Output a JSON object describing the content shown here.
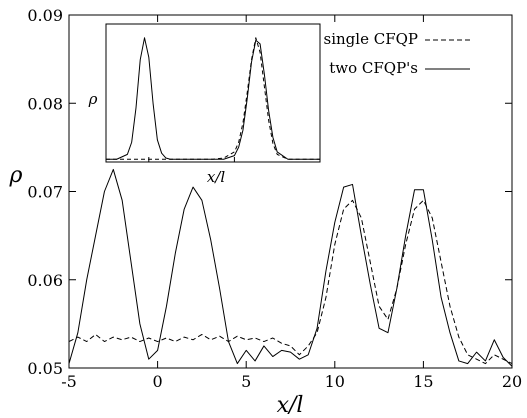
{
  "chart_data": {
    "type": "line",
    "title": "",
    "xlabel": "x/l",
    "ylabel": "ρ",
    "xlim": [
      -5,
      20
    ],
    "ylim": [
      0.05,
      0.09
    ],
    "x_ticks": [
      -5,
      0,
      5,
      10,
      15,
      20
    ],
    "y_ticks": [
      0.05,
      0.06,
      0.07,
      0.08,
      0.09
    ],
    "x_tick_labels": [
      "-5",
      "0",
      "5",
      "10",
      "15",
      "20"
    ],
    "y_tick_labels": [
      "0.05",
      "0.06",
      "0.07",
      "0.08",
      "0.09"
    ],
    "grid": false,
    "legend": {
      "placement": "top-right",
      "entries": [
        {
          "name": "single CFQP",
          "style": "dashed"
        },
        {
          "name": "two CFQP's",
          "style": "solid"
        }
      ]
    },
    "series": [
      {
        "name": "single CFQP",
        "style": "dashed",
        "color": "#000000",
        "x": [
          -5,
          -4.5,
          -4,
          -3.5,
          -3,
          -2.5,
          -2,
          -1.5,
          -1,
          -0.5,
          0,
          0.5,
          1,
          1.5,
          2,
          2.5,
          3,
          3.5,
          4,
          4.5,
          5,
          5.5,
          6,
          6.5,
          7,
          7.5,
          8,
          8.5,
          9,
          9.5,
          10,
          10.5,
          11,
          11.5,
          12,
          12.5,
          13,
          13.5,
          14,
          14.5,
          15,
          15.5,
          16,
          16.5,
          17,
          17.5,
          18,
          18.5,
          19,
          19.5,
          20
        ],
        "y": [
          0.053,
          0.0535,
          0.053,
          0.0538,
          0.053,
          0.0535,
          0.0532,
          0.0535,
          0.053,
          0.0534,
          0.053,
          0.0534,
          0.053,
          0.0535,
          0.0532,
          0.0538,
          0.0532,
          0.0536,
          0.053,
          0.0536,
          0.0532,
          0.0534,
          0.053,
          0.0534,
          0.0528,
          0.0525,
          0.0515,
          0.0525,
          0.054,
          0.058,
          0.064,
          0.068,
          0.069,
          0.067,
          0.062,
          0.057,
          0.0555,
          0.059,
          0.064,
          0.068,
          0.069,
          0.067,
          0.062,
          0.057,
          0.0535,
          0.0515,
          0.051,
          0.0505,
          0.0515,
          0.051,
          0.0505
        ]
      },
      {
        "name": "two CFQP's",
        "style": "solid",
        "color": "#000000",
        "x": [
          -5,
          -4.5,
          -4,
          -3.5,
          -3,
          -2.5,
          -2,
          -1.5,
          -1,
          -0.5,
          0,
          0.5,
          1,
          1.5,
          2,
          2.5,
          3,
          3.5,
          4,
          4.5,
          5,
          5.5,
          6,
          6.5,
          7,
          7.5,
          8,
          8.5,
          9,
          9.5,
          10,
          10.5,
          11,
          11.5,
          12,
          12.5,
          13,
          13.5,
          14,
          14.5,
          15,
          15.5,
          16,
          16.5,
          17,
          17.5,
          18,
          18.5,
          19,
          19.5,
          20
        ],
        "y": [
          0.0505,
          0.054,
          0.06,
          0.065,
          0.07,
          0.0725,
          0.069,
          0.062,
          0.055,
          0.051,
          0.052,
          0.057,
          0.063,
          0.068,
          0.0705,
          0.069,
          0.0645,
          0.059,
          0.053,
          0.0505,
          0.052,
          0.0508,
          0.0525,
          0.0513,
          0.052,
          0.0518,
          0.051,
          0.0515,
          0.0545,
          0.061,
          0.0665,
          0.0705,
          0.0708,
          0.065,
          0.0595,
          0.0545,
          0.054,
          0.059,
          0.065,
          0.0702,
          0.0702,
          0.0645,
          0.058,
          0.054,
          0.0508,
          0.0505,
          0.0518,
          0.0508,
          0.0532,
          0.0512,
          0.0502
        ]
      }
    ],
    "inset": {
      "xlabel": "x/l",
      "ylabel": "ρ",
      "series": [
        {
          "name": "single CFQP",
          "style": "dashed",
          "x": [
            0,
            0.05,
            0.1,
            0.15,
            0.2,
            0.25,
            0.3,
            0.35,
            0.4,
            0.45,
            0.5,
            0.55,
            0.6,
            0.62,
            0.64,
            0.66,
            0.68,
            0.7,
            0.72,
            0.74,
            0.76,
            0.78,
            0.8,
            0.85,
            0.9,
            0.95,
            1
          ],
          "y": [
            0,
            0,
            0,
            0,
            0,
            0,
            0,
            0,
            0,
            0,
            0,
            0.01,
            0.06,
            0.14,
            0.3,
            0.55,
            0.82,
            1,
            0.88,
            0.6,
            0.32,
            0.13,
            0.04,
            0,
            0,
            0,
            0
          ]
        },
        {
          "name": "two CFQP's",
          "style": "solid",
          "x": [
            0,
            0.05,
            0.1,
            0.12,
            0.14,
            0.16,
            0.18,
            0.2,
            0.22,
            0.24,
            0.26,
            0.28,
            0.3,
            0.35,
            0.4,
            0.45,
            0.5,
            0.55,
            0.6,
            0.62,
            0.64,
            0.66,
            0.68,
            0.7,
            0.72,
            0.74,
            0.76,
            0.78,
            0.8,
            0.85,
            0.9,
            0.95,
            1
          ],
          "y": [
            0,
            0,
            0.04,
            0.14,
            0.42,
            0.82,
            1,
            0.84,
            0.46,
            0.16,
            0.05,
            0.01,
            0,
            0,
            0,
            0,
            0,
            0,
            0.03,
            0.1,
            0.24,
            0.5,
            0.8,
            0.98,
            0.95,
            0.7,
            0.4,
            0.18,
            0.06,
            0,
            0,
            0,
            0
          ]
        }
      ]
    }
  }
}
